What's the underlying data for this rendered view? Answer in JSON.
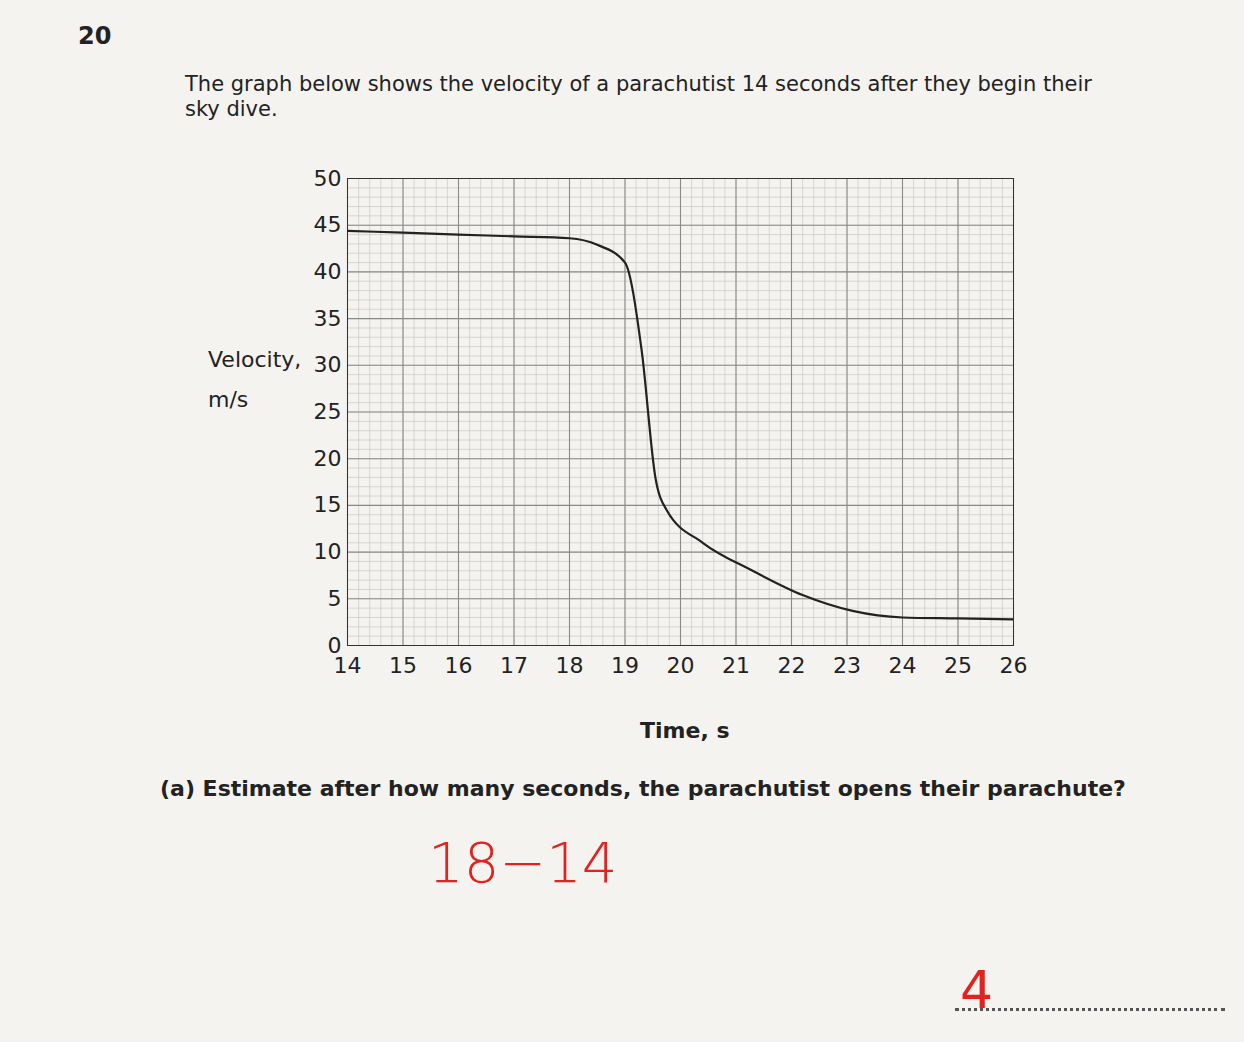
{
  "page": {
    "question_number": "20",
    "intro": "The graph below shows the velocity of a parachutist 14 seconds after they begin their sky dive.",
    "question": "(a) Estimate after how many seconds, the parachutist opens their parachute?",
    "working": "18−14",
    "answer": "4"
  },
  "chart_data": {
    "type": "line",
    "x_label": "Time, s",
    "y_label": [
      "Velocity,",
      "m/s"
    ],
    "x": [
      14,
      15,
      16,
      17,
      18,
      18.5,
      19,
      19.3,
      19.55,
      19.75,
      20.4,
      21.3,
      22.2,
      23.1,
      24,
      25,
      26
    ],
    "values": [
      44.4,
      44.2,
      44.0,
      43.8,
      43.6,
      42.9,
      41,
      31.6,
      17.9,
      14.5,
      11,
      8,
      5.4,
      3.7,
      3,
      2.9,
      2.8
    ],
    "color": "#222222",
    "xlim": [
      14,
      26
    ],
    "xticks": [
      14,
      15,
      16,
      17,
      18,
      19,
      20,
      21,
      22,
      23,
      24,
      25,
      26
    ],
    "ylim": [
      0,
      50
    ],
    "yticks": [
      0,
      5,
      10,
      15,
      20,
      25,
      30,
      35,
      40,
      45,
      50
    ],
    "grid": true
  }
}
